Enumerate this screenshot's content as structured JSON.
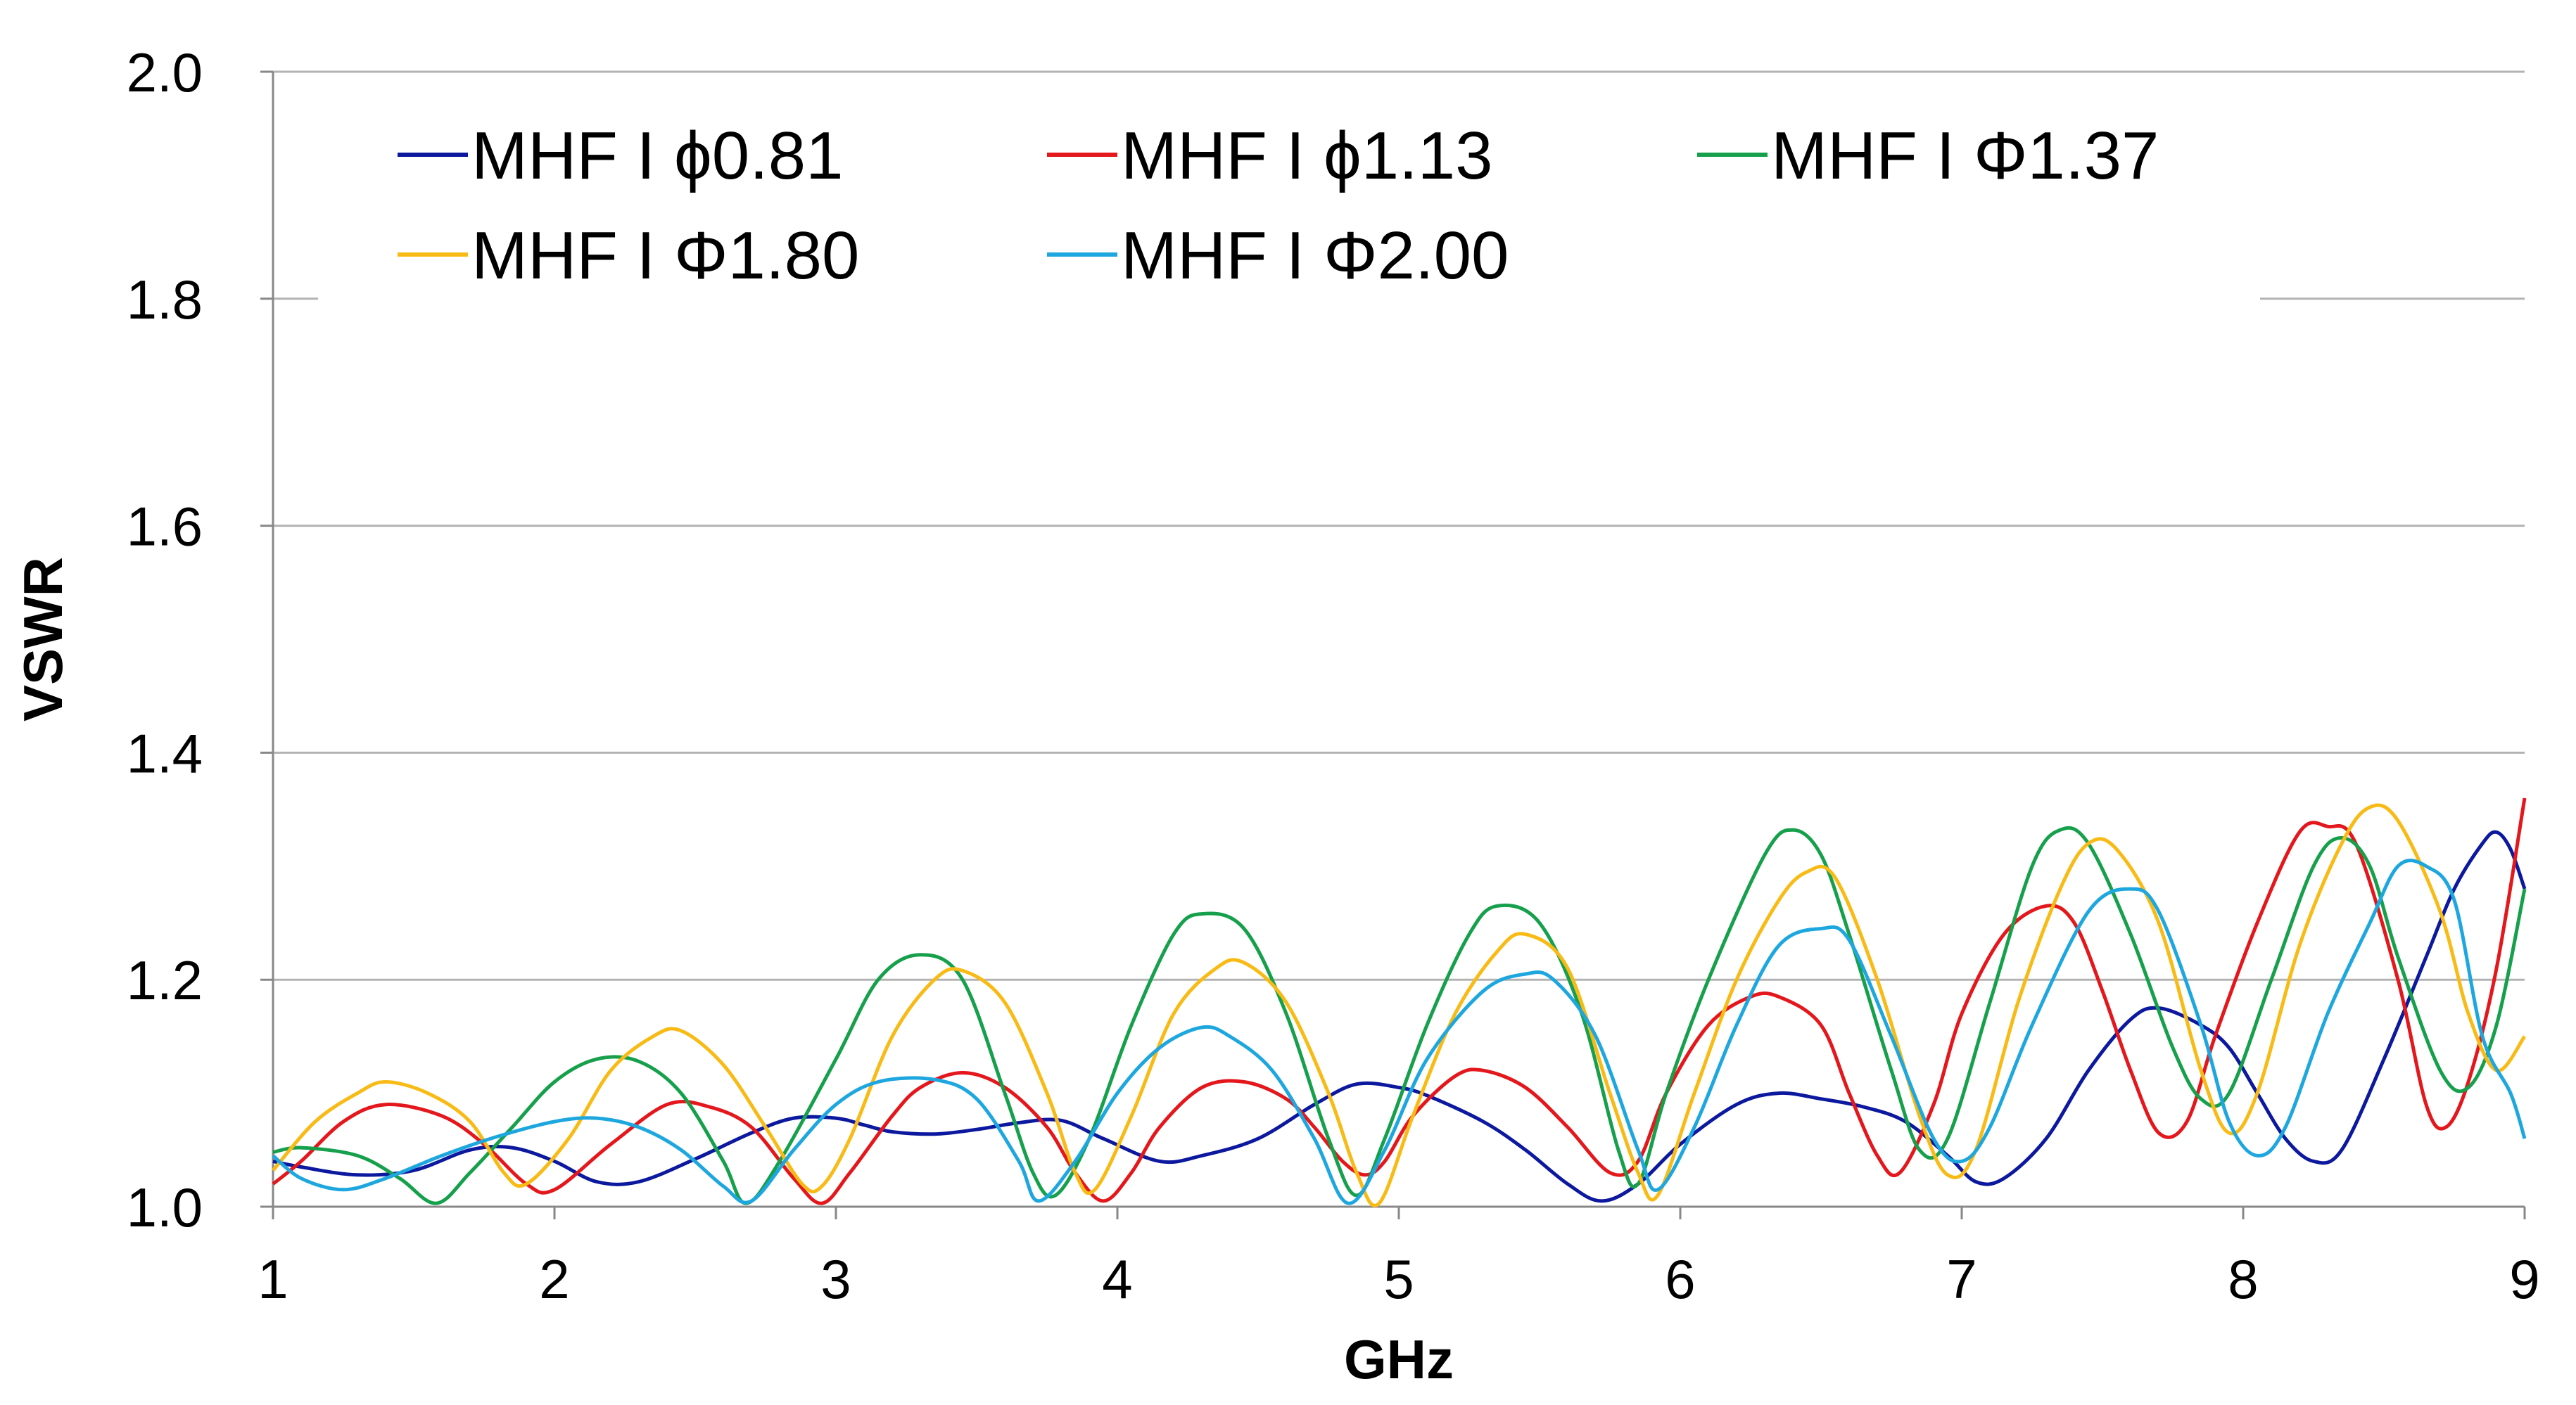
{
  "chart_data": {
    "type": "line",
    "title": "",
    "xlabel": "GHz",
    "ylabel": "VSWR",
    "xlim": [
      1,
      9
    ],
    "ylim": [
      1.0,
      2.0
    ],
    "xticks": [
      "1",
      "2",
      "3",
      "4",
      "5",
      "6",
      "7",
      "8",
      "9"
    ],
    "yticks": [
      "1.0",
      "1.2",
      "1.4",
      "1.6",
      "1.8",
      "2.0"
    ],
    "grid": "horizontal",
    "legend_position": "top-left, inside plot, 3 columns",
    "series": [
      {
        "name": "MHF I ϕ0.81",
        "color": "#0c189e",
        "points": [
          [
            1.0,
            1.04
          ],
          [
            1.1,
            1.035
          ],
          [
            1.3,
            1.028
          ],
          [
            1.5,
            1.032
          ],
          [
            1.7,
            1.05
          ],
          [
            1.85,
            1.052
          ],
          [
            2.0,
            1.04
          ],
          [
            2.15,
            1.022
          ],
          [
            2.3,
            1.022
          ],
          [
            2.5,
            1.042
          ],
          [
            2.7,
            1.065
          ],
          [
            2.85,
            1.078
          ],
          [
            3.0,
            1.078
          ],
          [
            3.1,
            1.072
          ],
          [
            3.2,
            1.066
          ],
          [
            3.35,
            1.064
          ],
          [
            3.5,
            1.068
          ],
          [
            3.65,
            1.074
          ],
          [
            3.8,
            1.076
          ],
          [
            3.95,
            1.06
          ],
          [
            4.15,
            1.04
          ],
          [
            4.3,
            1.045
          ],
          [
            4.5,
            1.06
          ],
          [
            4.7,
            1.09
          ],
          [
            4.85,
            1.108
          ],
          [
            5.0,
            1.105
          ],
          [
            5.1,
            1.098
          ],
          [
            5.3,
            1.075
          ],
          [
            5.45,
            1.05
          ],
          [
            5.6,
            1.02
          ],
          [
            5.72,
            1.005
          ],
          [
            5.85,
            1.02
          ],
          [
            6.0,
            1.055
          ],
          [
            6.2,
            1.09
          ],
          [
            6.35,
            1.1
          ],
          [
            6.5,
            1.095
          ],
          [
            6.65,
            1.088
          ],
          [
            6.8,
            1.075
          ],
          [
            6.95,
            1.045
          ],
          [
            7.05,
            1.022
          ],
          [
            7.15,
            1.025
          ],
          [
            7.3,
            1.06
          ],
          [
            7.45,
            1.12
          ],
          [
            7.6,
            1.165
          ],
          [
            7.7,
            1.175
          ],
          [
            7.85,
            1.16
          ],
          [
            7.95,
            1.14
          ],
          [
            8.05,
            1.1
          ],
          [
            8.15,
            1.06
          ],
          [
            8.25,
            1.04
          ],
          [
            8.35,
            1.05
          ],
          [
            8.5,
            1.13
          ],
          [
            8.65,
            1.22
          ],
          [
            8.75,
            1.28
          ],
          [
            8.85,
            1.32
          ],
          [
            8.9,
            1.33
          ],
          [
            8.95,
            1.315
          ],
          [
            9.0,
            1.28
          ]
        ]
      },
      {
        "name": "MHF I ϕ1.13",
        "color": "#e3171c",
        "points": [
          [
            1.0,
            1.02
          ],
          [
            1.1,
            1.04
          ],
          [
            1.25,
            1.075
          ],
          [
            1.4,
            1.09
          ],
          [
            1.6,
            1.08
          ],
          [
            1.75,
            1.055
          ],
          [
            1.9,
            1.02
          ],
          [
            2.0,
            1.015
          ],
          [
            2.2,
            1.055
          ],
          [
            2.4,
            1.09
          ],
          [
            2.55,
            1.088
          ],
          [
            2.7,
            1.07
          ],
          [
            2.85,
            1.025
          ],
          [
            2.95,
            1.003
          ],
          [
            3.05,
            1.03
          ],
          [
            3.2,
            1.08
          ],
          [
            3.3,
            1.105
          ],
          [
            3.45,
            1.118
          ],
          [
            3.6,
            1.105
          ],
          [
            3.75,
            1.07
          ],
          [
            3.85,
            1.03
          ],
          [
            3.95,
            1.005
          ],
          [
            4.05,
            1.03
          ],
          [
            4.15,
            1.07
          ],
          [
            4.3,
            1.105
          ],
          [
            4.45,
            1.11
          ],
          [
            4.6,
            1.095
          ],
          [
            4.7,
            1.07
          ],
          [
            4.8,
            1.04
          ],
          [
            4.88,
            1.028
          ],
          [
            4.95,
            1.04
          ],
          [
            5.05,
            1.08
          ],
          [
            5.2,
            1.115
          ],
          [
            5.3,
            1.12
          ],
          [
            5.45,
            1.105
          ],
          [
            5.6,
            1.07
          ],
          [
            5.75,
            1.03
          ],
          [
            5.85,
            1.04
          ],
          [
            5.95,
            1.1
          ],
          [
            6.1,
            1.16
          ],
          [
            6.25,
            1.185
          ],
          [
            6.35,
            1.185
          ],
          [
            6.5,
            1.16
          ],
          [
            6.6,
            1.1
          ],
          [
            6.7,
            1.045
          ],
          [
            6.78,
            1.03
          ],
          [
            6.9,
            1.09
          ],
          [
            7.0,
            1.17
          ],
          [
            7.15,
            1.24
          ],
          [
            7.3,
            1.265
          ],
          [
            7.4,
            1.25
          ],
          [
            7.5,
            1.19
          ],
          [
            7.6,
            1.12
          ],
          [
            7.7,
            1.065
          ],
          [
            7.8,
            1.075
          ],
          [
            7.9,
            1.15
          ],
          [
            8.05,
            1.25
          ],
          [
            8.2,
            1.33
          ],
          [
            8.3,
            1.335
          ],
          [
            8.4,
            1.32
          ],
          [
            8.55,
            1.2
          ],
          [
            8.65,
            1.09
          ],
          [
            8.72,
            1.07
          ],
          [
            8.8,
            1.11
          ],
          [
            8.9,
            1.21
          ],
          [
            9.0,
            1.36
          ]
        ]
      },
      {
        "name": "MHF I Φ1.37",
        "color": "#16a04c",
        "points": [
          [
            1.0,
            1.048
          ],
          [
            1.1,
            1.052
          ],
          [
            1.3,
            1.045
          ],
          [
            1.45,
            1.025
          ],
          [
            1.58,
            1.003
          ],
          [
            1.7,
            1.03
          ],
          [
            1.85,
            1.07
          ],
          [
            2.0,
            1.11
          ],
          [
            2.15,
            1.13
          ],
          [
            2.3,
            1.128
          ],
          [
            2.45,
            1.1
          ],
          [
            2.6,
            1.04
          ],
          [
            2.68,
            1.003
          ],
          [
            2.8,
            1.04
          ],
          [
            3.0,
            1.13
          ],
          [
            3.15,
            1.2
          ],
          [
            3.3,
            1.222
          ],
          [
            3.45,
            1.2
          ],
          [
            3.6,
            1.1
          ],
          [
            3.7,
            1.03
          ],
          [
            3.78,
            1.01
          ],
          [
            3.9,
            1.06
          ],
          [
            4.05,
            1.16
          ],
          [
            4.2,
            1.24
          ],
          [
            4.3,
            1.258
          ],
          [
            4.45,
            1.245
          ],
          [
            4.6,
            1.17
          ],
          [
            4.75,
            1.06
          ],
          [
            4.85,
            1.01
          ],
          [
            4.95,
            1.06
          ],
          [
            5.1,
            1.16
          ],
          [
            5.25,
            1.24
          ],
          [
            5.35,
            1.265
          ],
          [
            5.5,
            1.25
          ],
          [
            5.65,
            1.17
          ],
          [
            5.78,
            1.05
          ],
          [
            5.85,
            1.02
          ],
          [
            5.95,
            1.1
          ],
          [
            6.1,
            1.2
          ],
          [
            6.3,
            1.31
          ],
          [
            6.4,
            1.332
          ],
          [
            6.5,
            1.31
          ],
          [
            6.6,
            1.24
          ],
          [
            6.75,
            1.12
          ],
          [
            6.85,
            1.05
          ],
          [
            6.95,
            1.06
          ],
          [
            7.1,
            1.18
          ],
          [
            7.25,
            1.3
          ],
          [
            7.35,
            1.332
          ],
          [
            7.45,
            1.32
          ],
          [
            7.6,
            1.24
          ],
          [
            7.75,
            1.14
          ],
          [
            7.85,
            1.095
          ],
          [
            7.95,
            1.1
          ],
          [
            8.1,
            1.2
          ],
          [
            8.25,
            1.3
          ],
          [
            8.35,
            1.325
          ],
          [
            8.45,
            1.3
          ],
          [
            8.55,
            1.22
          ],
          [
            8.7,
            1.12
          ],
          [
            8.8,
            1.105
          ],
          [
            8.9,
            1.16
          ],
          [
            9.0,
            1.28
          ]
        ]
      },
      {
        "name": "MHF I Φ1.80",
        "color": "#f8bb16",
        "points": [
          [
            1.0,
            1.032
          ],
          [
            1.15,
            1.075
          ],
          [
            1.3,
            1.1
          ],
          [
            1.4,
            1.11
          ],
          [
            1.55,
            1.1
          ],
          [
            1.7,
            1.075
          ],
          [
            1.82,
            1.03
          ],
          [
            1.9,
            1.02
          ],
          [
            2.05,
            1.06
          ],
          [
            2.2,
            1.12
          ],
          [
            2.35,
            1.15
          ],
          [
            2.45,
            1.155
          ],
          [
            2.6,
            1.125
          ],
          [
            2.75,
            1.07
          ],
          [
            2.88,
            1.02
          ],
          [
            2.95,
            1.018
          ],
          [
            3.05,
            1.06
          ],
          [
            3.2,
            1.15
          ],
          [
            3.35,
            1.2
          ],
          [
            3.45,
            1.208
          ],
          [
            3.6,
            1.18
          ],
          [
            3.75,
            1.1
          ],
          [
            3.85,
            1.03
          ],
          [
            3.92,
            1.015
          ],
          [
            4.05,
            1.08
          ],
          [
            4.2,
            1.17
          ],
          [
            4.35,
            1.21
          ],
          [
            4.45,
            1.215
          ],
          [
            4.6,
            1.18
          ],
          [
            4.75,
            1.1
          ],
          [
            4.85,
            1.03
          ],
          [
            4.93,
            1.003
          ],
          [
            5.05,
            1.08
          ],
          [
            5.2,
            1.17
          ],
          [
            5.35,
            1.225
          ],
          [
            5.45,
            1.24
          ],
          [
            5.6,
            1.21
          ],
          [
            5.75,
            1.1
          ],
          [
            5.85,
            1.03
          ],
          [
            5.92,
            1.01
          ],
          [
            6.05,
            1.1
          ],
          [
            6.2,
            1.2
          ],
          [
            6.35,
            1.27
          ],
          [
            6.45,
            1.295
          ],
          [
            6.55,
            1.29
          ],
          [
            6.7,
            1.2
          ],
          [
            6.85,
            1.08
          ],
          [
            6.95,
            1.028
          ],
          [
            7.05,
            1.05
          ],
          [
            7.2,
            1.18
          ],
          [
            7.35,
            1.28
          ],
          [
            7.45,
            1.32
          ],
          [
            7.55,
            1.315
          ],
          [
            7.7,
            1.25
          ],
          [
            7.85,
            1.12
          ],
          [
            7.95,
            1.065
          ],
          [
            8.05,
            1.1
          ],
          [
            8.2,
            1.23
          ],
          [
            8.35,
            1.32
          ],
          [
            8.45,
            1.352
          ],
          [
            8.55,
            1.34
          ],
          [
            8.7,
            1.26
          ],
          [
            8.8,
            1.17
          ],
          [
            8.9,
            1.12
          ],
          [
            9.0,
            1.15
          ]
        ]
      },
      {
        "name": "MHF I Φ2.00",
        "color": "#1ea7df",
        "points": [
          [
            1.0,
            1.045
          ],
          [
            1.1,
            1.025
          ],
          [
            1.25,
            1.015
          ],
          [
            1.4,
            1.025
          ],
          [
            1.6,
            1.045
          ],
          [
            1.8,
            1.062
          ],
          [
            2.0,
            1.075
          ],
          [
            2.15,
            1.078
          ],
          [
            2.3,
            1.07
          ],
          [
            2.45,
            1.05
          ],
          [
            2.6,
            1.018
          ],
          [
            2.7,
            1.005
          ],
          [
            2.85,
            1.05
          ],
          [
            3.0,
            1.09
          ],
          [
            3.15,
            1.11
          ],
          [
            3.35,
            1.112
          ],
          [
            3.5,
            1.095
          ],
          [
            3.65,
            1.04
          ],
          [
            3.72,
            1.005
          ],
          [
            3.85,
            1.04
          ],
          [
            4.0,
            1.1
          ],
          [
            4.15,
            1.14
          ],
          [
            4.3,
            1.158
          ],
          [
            4.4,
            1.15
          ],
          [
            4.55,
            1.12
          ],
          [
            4.7,
            1.06
          ],
          [
            4.82,
            1.003
          ],
          [
            4.95,
            1.05
          ],
          [
            5.1,
            1.13
          ],
          [
            5.3,
            1.19
          ],
          [
            5.45,
            1.205
          ],
          [
            5.55,
            1.2
          ],
          [
            5.7,
            1.15
          ],
          [
            5.85,
            1.05
          ],
          [
            5.92,
            1.015
          ],
          [
            6.05,
            1.07
          ],
          [
            6.2,
            1.16
          ],
          [
            6.35,
            1.23
          ],
          [
            6.5,
            1.245
          ],
          [
            6.6,
            1.235
          ],
          [
            6.75,
            1.15
          ],
          [
            6.9,
            1.06
          ],
          [
            7.0,
            1.04
          ],
          [
            7.1,
            1.07
          ],
          [
            7.25,
            1.16
          ],
          [
            7.45,
            1.26
          ],
          [
            7.6,
            1.28
          ],
          [
            7.7,
            1.26
          ],
          [
            7.85,
            1.16
          ],
          [
            7.95,
            1.075
          ],
          [
            8.05,
            1.045
          ],
          [
            8.15,
            1.07
          ],
          [
            8.3,
            1.17
          ],
          [
            8.45,
            1.25
          ],
          [
            8.55,
            1.3
          ],
          [
            8.65,
            1.3
          ],
          [
            8.75,
            1.27
          ],
          [
            8.85,
            1.15
          ],
          [
            8.95,
            1.1
          ],
          [
            9.0,
            1.06
          ]
        ]
      }
    ]
  }
}
